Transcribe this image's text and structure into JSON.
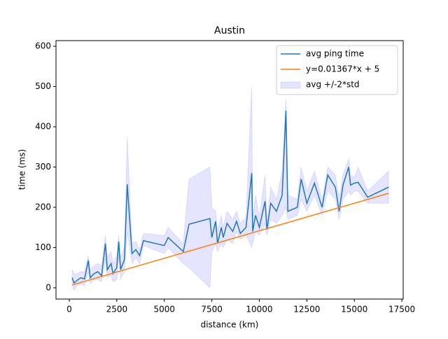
{
  "chart_data": {
    "type": "line",
    "title": "Austin",
    "x_label": "distance (km)",
    "y_label": "time (ms)",
    "xlim": [
      -700,
      17570
    ],
    "ylim": [
      -28,
      614
    ],
    "xticks": [
      0,
      2500,
      5000,
      7500,
      10000,
      12500,
      15000,
      17500
    ],
    "yticks": [
      0,
      100,
      200,
      300,
      400,
      500,
      600
    ],
    "legend": "upper right",
    "series": [
      {
        "name": "avg ping time",
        "color": "#1f77b4",
        "kind": "line",
        "x": [
          150,
          250,
          400,
          600,
          800,
          1000,
          1100,
          1300,
          1500,
          1700,
          1900,
          2000,
          2200,
          2300,
          2500,
          2600,
          2700,
          2900,
          3050,
          3300,
          3500,
          3700,
          3900,
          5000,
          5200,
          6000,
          6300,
          7400,
          7500,
          7700,
          7800,
          8000,
          8100,
          8300,
          8600,
          8800,
          9000,
          9300,
          9600,
          9650,
          9800,
          10000,
          10300,
          10400,
          10600,
          10900,
          11200,
          11400,
          11500,
          12000,
          12200,
          12500,
          12900,
          13300,
          13600,
          14000,
          14200,
          14400,
          14700,
          14800,
          15000,
          15200,
          15700,
          16800
        ],
        "values": [
          25,
          12,
          18,
          25,
          22,
          68,
          25,
          35,
          40,
          30,
          110,
          45,
          60,
          35,
          50,
          115,
          45,
          70,
          257,
          85,
          95,
          80,
          117,
          105,
          125,
          90,
          158,
          172,
          125,
          165,
          110,
          150,
          125,
          160,
          140,
          165,
          135,
          150,
          285,
          140,
          180,
          150,
          215,
          145,
          210,
          190,
          230,
          440,
          190,
          200,
          270,
          210,
          260,
          200,
          280,
          250,
          190,
          255,
          300,
          255,
          260,
          262,
          225,
          250
        ]
      },
      {
        "name": "y=0.01367*x + 5",
        "color": "#ff7f0e",
        "kind": "line",
        "x": [
          150,
          16800
        ],
        "values": [
          7.05,
          234.66
        ]
      },
      {
        "name": "avg +/-2*std",
        "color": "#0000ff",
        "kind": "band",
        "x": [
          150,
          250,
          400,
          600,
          800,
          1000,
          1100,
          1300,
          1500,
          1700,
          1900,
          2000,
          2200,
          2300,
          2500,
          2600,
          2700,
          2900,
          3050,
          3300,
          3500,
          3700,
          3900,
          5000,
          5200,
          6000,
          6300,
          7400,
          7500,
          7700,
          7800,
          8000,
          8100,
          8300,
          8600,
          8800,
          9000,
          9300,
          9600,
          9650,
          9800,
          10000,
          10300,
          10400,
          10600,
          10900,
          11200,
          11400,
          11500,
          12000,
          12200,
          12500,
          12900,
          13300,
          13600,
          14000,
          14200,
          14400,
          14700,
          14800,
          15000,
          15200,
          15700,
          16800
        ],
        "lower": [
          5,
          -5,
          5,
          10,
          5,
          40,
          10,
          20,
          20,
          15,
          70,
          25,
          30,
          15,
          20,
          80,
          20,
          40,
          140,
          60,
          75,
          60,
          105,
          85,
          100,
          60,
          50,
          0,
          90,
          110,
          90,
          110,
          100,
          120,
          110,
          140,
          120,
          130,
          100,
          110,
          140,
          130,
          160,
          130,
          170,
          160,
          180,
          200,
          170,
          180,
          220,
          190,
          230,
          180,
          240,
          220,
          170,
          220,
          240,
          230,
          240,
          240,
          210,
          210
        ],
        "upper": [
          45,
          35,
          35,
          40,
          40,
          80,
          45,
          55,
          60,
          55,
          130,
          75,
          90,
          60,
          80,
          130,
          75,
          100,
          375,
          110,
          115,
          95,
          135,
          130,
          150,
          110,
          270,
          300,
          200,
          190,
          140,
          180,
          150,
          190,
          170,
          190,
          160,
          175,
          500,
          170,
          230,
          175,
          280,
          165,
          250,
          220,
          290,
          470,
          230,
          220,
          300,
          240,
          290,
          220,
          300,
          280,
          220,
          280,
          320,
          280,
          275,
          300,
          240,
          290
        ]
      }
    ]
  }
}
